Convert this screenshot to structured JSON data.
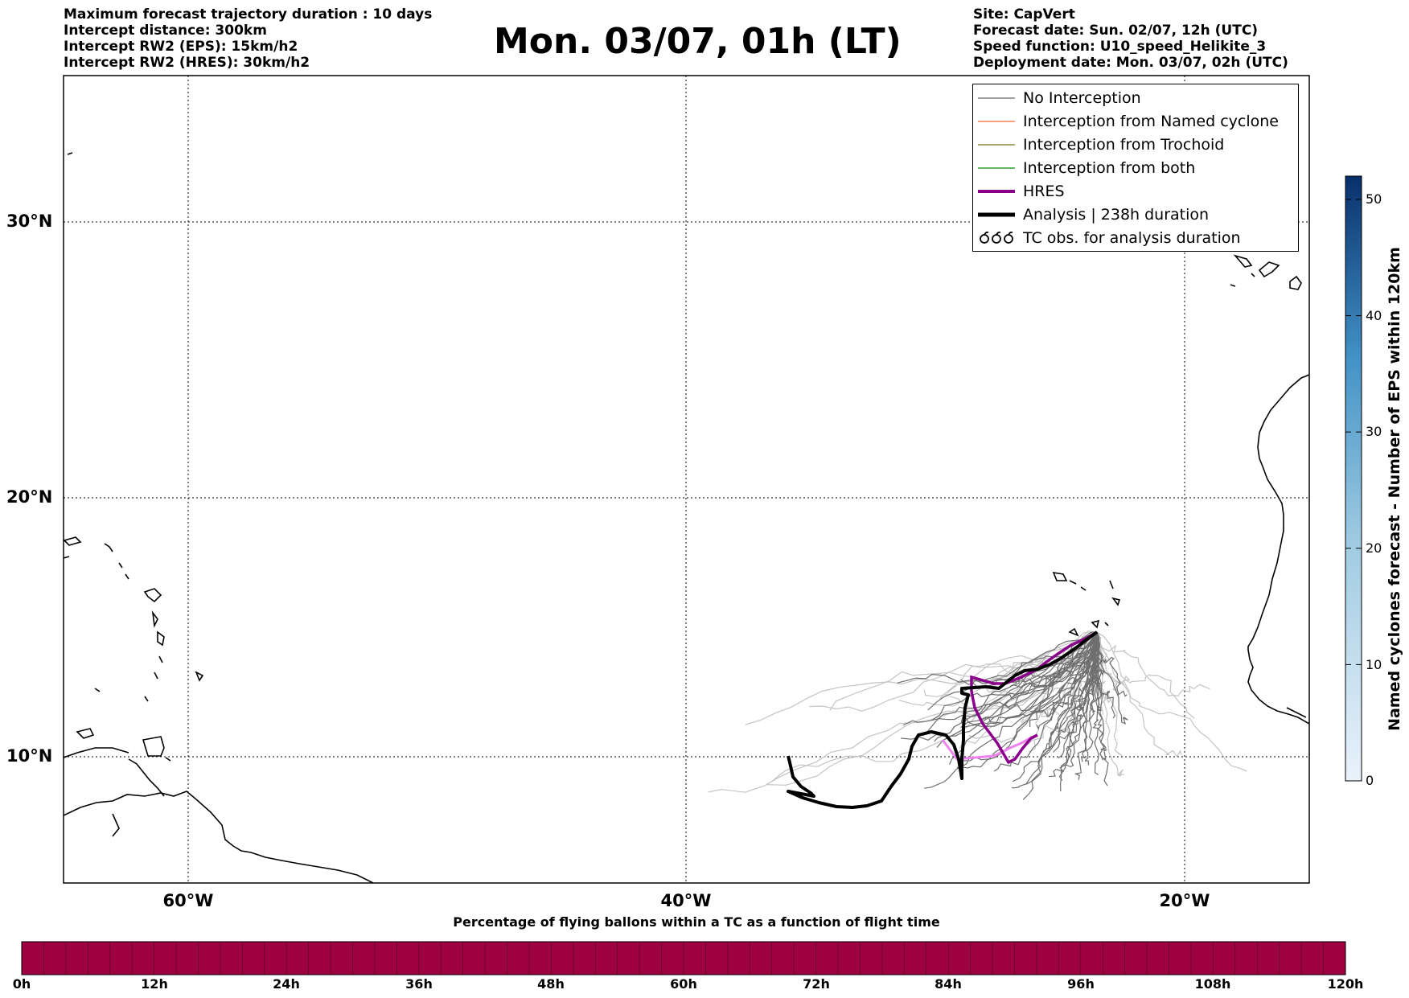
{
  "header": {
    "left_lines": [
      "Maximum forecast trajectory duration : 10 days",
      "Intercept distance: 300km",
      "Intercept RW2 (EPS):  15km/h2",
      "Intercept RW2 (HRES): 30km/h2"
    ],
    "title": "Mon. 03/07, 01h (LT)",
    "right_lines": [
      "Site: CapVert",
      "Forecast date: Sun. 02/07, 12h (UTC)",
      "Speed function: U10_speed_Helikite_3",
      "Deployment date: Mon. 03/07, 02h (UTC)"
    ]
  },
  "map": {
    "lat_labels": [
      "30°N",
      "20°N",
      "10°N"
    ],
    "lon_labels": [
      "60°W",
      "40°W",
      "20°W"
    ],
    "lon_range": [
      -65,
      -15
    ],
    "lat_range": [
      5.4,
      35.3
    ],
    "gridlines": true,
    "legend": {
      "placement": "top-right",
      "items": [
        {
          "label": "No Interception",
          "color": "#808080",
          "style": "thin-line"
        },
        {
          "label": "Interception from Named cyclone",
          "color": "#ff7f50",
          "style": "thin-line"
        },
        {
          "label": "Interception from Trochoid",
          "color": "#8b8b3a",
          "style": "thin-line"
        },
        {
          "label": "Interception from both",
          "color": "#2ca02c",
          "style": "thin-line"
        },
        {
          "label": "HRES",
          "color": "#8b008b",
          "style": "thick-line"
        },
        {
          "label": "Analysis | 238h duration",
          "color": "#000000",
          "style": "thicker-line"
        },
        {
          "label": "TC obs. for analysis duration",
          "color": "#000000",
          "style": "tc-symbol"
        }
      ]
    },
    "colors": {
      "analysis": "#000000",
      "hres": "#8b008b",
      "hres_extension": "#ee82ee",
      "eps_dark": "#6e6e6e",
      "eps_light": "#c4c4c4",
      "coast": "#000000"
    }
  },
  "colorbar_right": {
    "label": "Named cyclones forecast - Number of EPS within 120km",
    "ticks": [
      "0",
      "10",
      "20",
      "30",
      "40",
      "50"
    ],
    "min": 0,
    "max": 52,
    "color_low": "#eaf2fb",
    "color_high": "#08306b"
  },
  "colorbar_bottom": {
    "title": "Percentage of flying ballons within a TC as a function of flight time",
    "labels": [
      "0h",
      "12h",
      "24h",
      "36h",
      "48h",
      "60h",
      "72h",
      "84h",
      "96h",
      "108h",
      "120h"
    ],
    "fill_color": "#9e0142"
  }
}
